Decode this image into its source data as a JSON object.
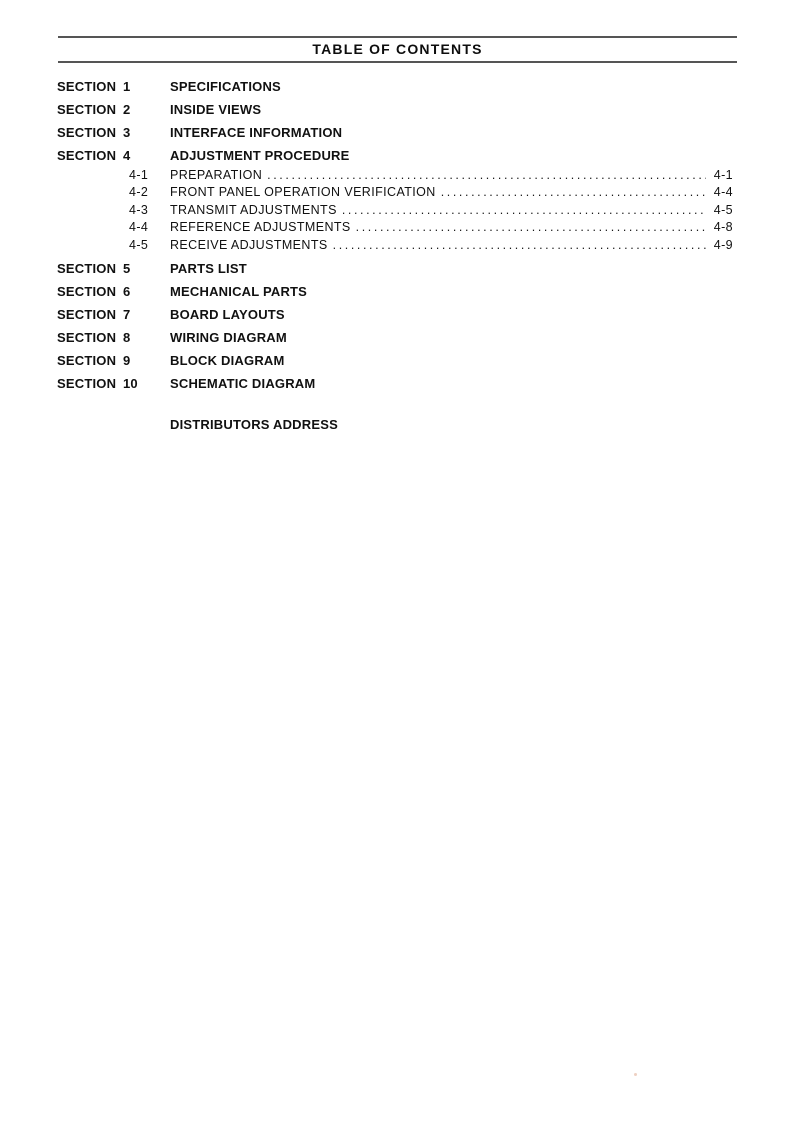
{
  "page": {
    "title": "TABLE OF CONTENTS"
  },
  "colors": {
    "rule": "#555555",
    "text": "#111111",
    "artifact_dot": "#e8c0ae"
  },
  "sections": [
    {
      "label": "SECTION 1",
      "title": "SPECIFICATIONS"
    },
    {
      "label": "SECTION 2",
      "title": "INSIDE VIEWS"
    },
    {
      "label": "SECTION 3",
      "title": "INTERFACE INFORMATION"
    },
    {
      "label": "SECTION 4",
      "title": "ADJUSTMENT PROCEDURE",
      "subsections": [
        {
          "number": "4-1",
          "title": "PREPARATION",
          "page": "4-1"
        },
        {
          "number": "4-2",
          "title": "FRONT PANEL OPERATION VERIFICATION",
          "page": "4-4"
        },
        {
          "number": "4-3",
          "title": "TRANSMIT ADJUSTMENTS",
          "page": "4-5"
        },
        {
          "number": "4-4",
          "title": "REFERENCE ADJUSTMENTS",
          "page": "4-8"
        },
        {
          "number": "4-5",
          "title": "RECEIVE ADJUSTMENTS",
          "page": "4-9"
        }
      ]
    },
    {
      "label": "SECTION 5",
      "title": "PARTS LIST"
    },
    {
      "label": "SECTION 6",
      "title": "MECHANICAL PARTS"
    },
    {
      "label": "SECTION 7",
      "title": "BOARD LAYOUTS"
    },
    {
      "label": "SECTION 8",
      "title": "WIRING DIAGRAM"
    },
    {
      "label": "SECTION 9",
      "title": "BLOCK DIAGRAM"
    },
    {
      "label": "SECTION 10",
      "title": "SCHEMATIC DIAGRAM"
    }
  ],
  "footer": {
    "distributors_label": "DISTRIBUTORS ADDRESS"
  }
}
